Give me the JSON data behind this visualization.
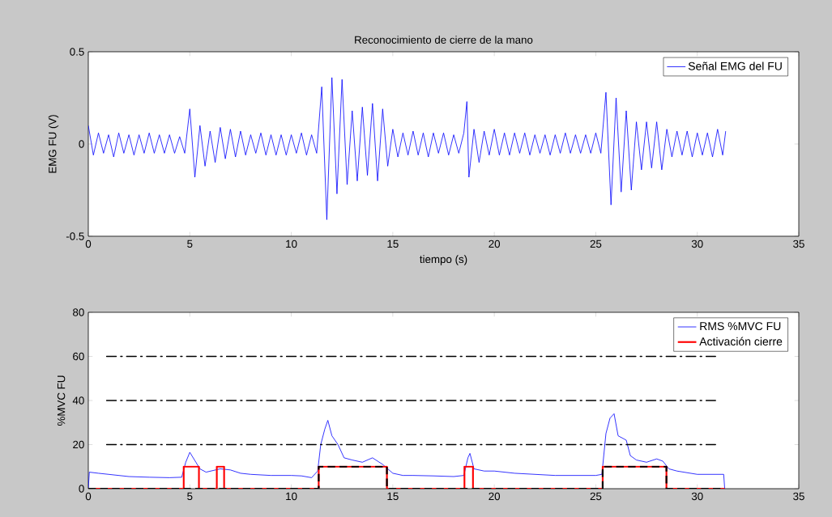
{
  "chart_data": [
    {
      "type": "line",
      "title": "Reconocimiento de cierre de la mano",
      "xlabel": "tiempo (s)",
      "ylabel": "EMG FU (V)",
      "xlim": [
        0,
        35
      ],
      "xticks": [
        0,
        5,
        10,
        15,
        20,
        25,
        30,
        35
      ],
      "ylim": [
        -0.5,
        0.5
      ],
      "yticks": [
        -0.5,
        0,
        0.5
      ],
      "legend": "top right",
      "series": [
        {
          "name": "Señal EMG del FU",
          "color": "#0000ff",
          "x": [
            0,
            0.25,
            0.5,
            0.75,
            1,
            1.25,
            1.5,
            1.75,
            2,
            2.25,
            2.5,
            2.75,
            3,
            3.25,
            3.5,
            3.75,
            4,
            4.25,
            4.5,
            4.75,
            5,
            5.25,
            5.5,
            5.75,
            6,
            6.25,
            6.5,
            6.75,
            7,
            7.25,
            7.5,
            7.75,
            8,
            8.25,
            8.5,
            8.75,
            9,
            9.25,
            9.5,
            9.75,
            10,
            10.25,
            10.5,
            10.75,
            11,
            11.25,
            11.5,
            11.75,
            12,
            12.25,
            12.5,
            12.75,
            13,
            13.25,
            13.5,
            13.75,
            14,
            14.25,
            14.5,
            14.75,
            15,
            15.25,
            15.5,
            15.75,
            16,
            16.25,
            16.5,
            16.75,
            17,
            17.25,
            17.5,
            17.75,
            18,
            18.25,
            18.5,
            18.65,
            18.75,
            19,
            19.25,
            19.5,
            19.75,
            20,
            20.25,
            20.5,
            20.75,
            21,
            21.25,
            21.5,
            21.75,
            22,
            22.25,
            22.5,
            22.75,
            23,
            23.25,
            23.5,
            23.75,
            24,
            24.25,
            24.5,
            24.75,
            25,
            25.25,
            25.5,
            25.75,
            26,
            26.25,
            26.5,
            26.75,
            27,
            27.25,
            27.5,
            27.75,
            28,
            28.25,
            28.5,
            28.75,
            29,
            29.25,
            29.5,
            29.75,
            30,
            30.25,
            30.5,
            30.75,
            31,
            31.25,
            31.4
          ],
          "values": [
            0.1,
            -0.06,
            0.06,
            -0.05,
            0.05,
            -0.07,
            0.06,
            -0.05,
            0.05,
            -0.06,
            0.05,
            -0.05,
            0.06,
            -0.05,
            0.05,
            -0.05,
            0.05,
            -0.05,
            0.04,
            -0.05,
            0.19,
            -0.18,
            0.1,
            -0.12,
            0.07,
            -0.1,
            0.09,
            -0.08,
            0.08,
            -0.07,
            0.07,
            -0.06,
            0.05,
            -0.05,
            0.06,
            -0.06,
            0.05,
            -0.06,
            0.05,
            -0.06,
            0.05,
            -0.05,
            0.06,
            -0.06,
            0.05,
            -0.05,
            0.31,
            -0.41,
            0.36,
            -0.27,
            0.35,
            -0.22,
            0.18,
            -0.2,
            0.2,
            -0.17,
            0.22,
            -0.2,
            0.19,
            -0.12,
            0.08,
            -0.07,
            0.06,
            -0.06,
            0.07,
            -0.06,
            0.06,
            -0.07,
            0.06,
            -0.05,
            0.06,
            -0.06,
            0.05,
            -0.05,
            0.06,
            0.23,
            -0.18,
            0.08,
            -0.1,
            0.07,
            -0.06,
            0.08,
            -0.06,
            0.06,
            -0.06,
            0.06,
            -0.05,
            0.06,
            -0.06,
            0.05,
            -0.05,
            0.05,
            -0.06,
            0.05,
            -0.05,
            0.06,
            -0.05,
            0.05,
            -0.05,
            0.05,
            -0.05,
            0.06,
            -0.05,
            0.28,
            -0.33,
            0.25,
            -0.26,
            0.18,
            -0.25,
            0.12,
            -0.14,
            0.12,
            -0.13,
            0.12,
            -0.14,
            0.08,
            -0.07,
            0.07,
            -0.06,
            0.07,
            -0.07,
            0.06,
            -0.06,
            0.06,
            -0.07,
            0.08,
            -0.06,
            0.07
          ]
        }
      ]
    },
    {
      "type": "line",
      "ylabel": "%MVC FU",
      "xlim": [
        0,
        35
      ],
      "xticks": [
        0,
        5,
        10,
        15,
        20,
        25,
        30,
        35
      ],
      "ylim": [
        0,
        80
      ],
      "yticks": [
        0,
        20,
        40,
        60,
        80
      ],
      "legend": "top right",
      "series": [
        {
          "name": "RMS %MVC FU",
          "color": "#0000ff",
          "x": [
            0,
            0.05,
            0.5,
            1,
            2,
            3,
            4,
            4.6,
            4.8,
            5,
            5.3,
            5.5,
            5.8,
            6.5,
            7,
            7.5,
            8,
            9,
            10,
            10.5,
            11,
            11.3,
            11.45,
            11.65,
            11.8,
            12,
            12.3,
            12.6,
            13,
            13.5,
            14,
            14.5,
            15,
            15.5,
            16,
            17,
            18,
            18.5,
            18.7,
            18.8,
            19,
            19.5,
            20,
            21,
            22,
            23,
            24,
            25,
            25.3,
            25.5,
            25.7,
            25.9,
            26.1,
            26.5,
            26.7,
            27,
            27.5,
            28,
            28.3,
            28.6,
            29,
            30,
            31.3,
            31.35
          ],
          "values": [
            0,
            7.5,
            7,
            6.5,
            5.5,
            5.2,
            5,
            5.2,
            12,
            16.5,
            12,
            9,
            7.5,
            9,
            8.5,
            7,
            6.5,
            6,
            6,
            5.8,
            5,
            8,
            20,
            27,
            31,
            24,
            20,
            14,
            13,
            12,
            14,
            11,
            7,
            6,
            6,
            5.8,
            5.5,
            6,
            14,
            16,
            9,
            8,
            8,
            7,
            6.5,
            6,
            6,
            6,
            6.5,
            25,
            32,
            34,
            24,
            22,
            15,
            13,
            12,
            13.5,
            12.5,
            9,
            8,
            6.5,
            6.5,
            0
          ]
        },
        {
          "name": "Activación cierre",
          "type": "step",
          "color": "#ff0000",
          "x": [
            0,
            4.7,
            5.45,
            6.33,
            6.69,
            11.35,
            14.71,
            18.53,
            18.95,
            25.34,
            28.48,
            31.35
          ],
          "values": [
            0,
            10,
            0,
            10,
            0,
            10,
            0,
            10,
            0,
            10,
            0,
            0
          ]
        },
        {
          "type": "step",
          "color": "#000000",
          "line_style": "dashed",
          "x": [
            0,
            11.35,
            14.71,
            25.34,
            28.48,
            31.35
          ],
          "values": [
            0,
            10,
            0,
            10,
            0,
            0
          ]
        },
        {
          "color": "#000000",
          "line_style": "dashdot",
          "x": [
            0.9,
            30.9
          ],
          "values": [
            20,
            20
          ]
        },
        {
          "color": "#000000",
          "line_style": "dashdot",
          "x": [
            0.9,
            30.9
          ],
          "values": [
            40,
            40
          ]
        },
        {
          "color": "#000000",
          "line_style": "dashdot",
          "x": [
            0.9,
            30.9
          ],
          "values": [
            60,
            60
          ]
        }
      ]
    }
  ]
}
